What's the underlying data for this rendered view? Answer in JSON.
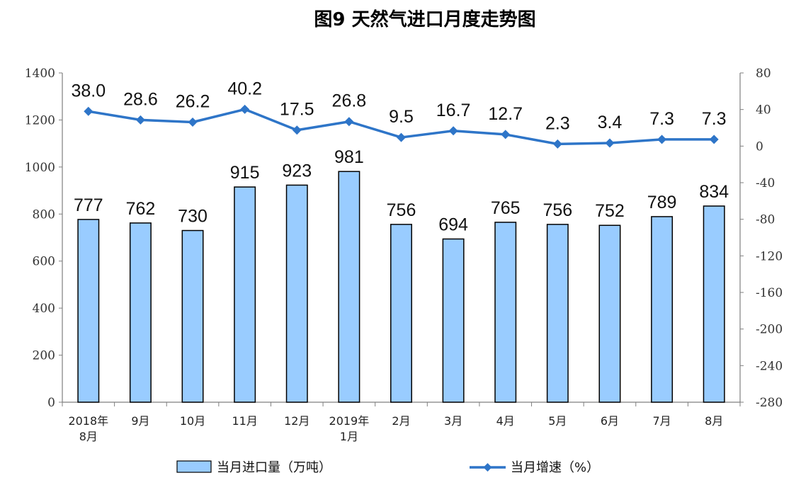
{
  "title": "图9  天然气进口月度走势图",
  "chart_data": {
    "type": "bar",
    "title": "图9  天然气进口月度走势图",
    "categories": [
      [
        "2018年",
        "8月"
      ],
      [
        "9月"
      ],
      [
        "10月"
      ],
      [
        "11月"
      ],
      [
        "12月"
      ],
      [
        "2019年",
        "1月"
      ],
      [
        "2月"
      ],
      [
        "3月"
      ],
      [
        "4月"
      ],
      [
        "5月"
      ],
      [
        "6月"
      ],
      [
        "7月"
      ],
      [
        "8月"
      ]
    ],
    "series": [
      {
        "name": "当月进口量（万吨）",
        "type": "bar",
        "axis": "left",
        "values": [
          777,
          762,
          730,
          915,
          923,
          981,
          756,
          694,
          765,
          756,
          752,
          789,
          834
        ],
        "labels": [
          "777",
          "762",
          "730",
          "915",
          "923",
          "981",
          "756",
          "694",
          "765",
          "756",
          "752",
          "789",
          "834"
        ],
        "color": "#99ccff",
        "border": "#000000"
      },
      {
        "name": "当月增速（%）",
        "type": "line",
        "axis": "right",
        "values": [
          38.0,
          28.6,
          26.2,
          40.2,
          17.5,
          26.8,
          9.5,
          16.7,
          12.7,
          2.3,
          3.4,
          7.3,
          7.3
        ],
        "labels": [
          "38.0",
          "28.6",
          "26.2",
          "40.2",
          "17.5",
          "26.8",
          "9.5",
          "16.7",
          "12.7",
          "2.3",
          "3.4",
          "7.3",
          "7.3"
        ],
        "color": "#2e75c8"
      }
    ],
    "left_axis": {
      "min": 0,
      "max": 1400,
      "ticks": [
        "0",
        "200",
        "400",
        "600",
        "800",
        "1000",
        "1200",
        "1400"
      ]
    },
    "right_axis": {
      "min": -280,
      "max": 80,
      "ticks": [
        "80",
        "40",
        "0",
        "-40",
        "-80",
        "-120",
        "-160",
        "-200",
        "-240",
        "-280"
      ]
    },
    "grid": false,
    "legend_position": "bottom"
  }
}
